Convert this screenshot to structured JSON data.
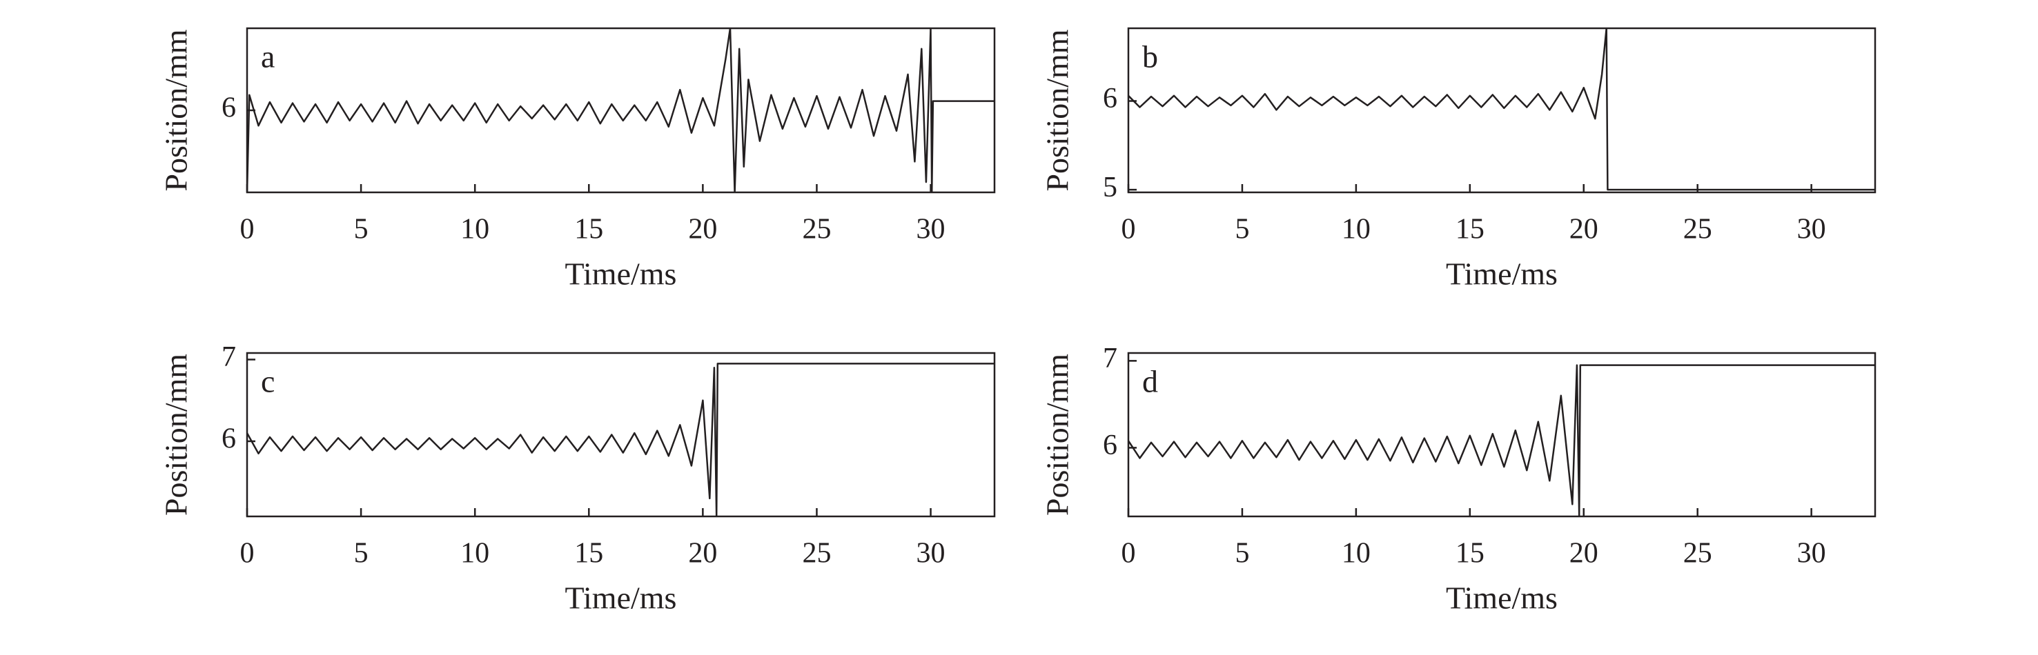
{
  "chart_data": [
    {
      "type": "line",
      "label": "a",
      "x_label": "Time/ms",
      "y_label": "Position/mm",
      "color": "#231f20",
      "xlim": [
        0,
        32.8
      ],
      "xticks": [
        0,
        5,
        10,
        15,
        20,
        25,
        30
      ],
      "ylim": [
        5.2,
        6.8
      ],
      "yticks": [
        6
      ],
      "x": [
        0,
        0.1,
        0.5,
        1,
        1.5,
        2,
        2.5,
        3,
        3.5,
        4,
        4.5,
        5,
        5.5,
        6,
        6.5,
        7,
        7.5,
        8,
        8.5,
        9,
        9.5,
        10,
        10.5,
        11,
        11.5,
        12,
        12.5,
        13,
        13.5,
        14,
        14.5,
        15,
        15.5,
        16,
        16.5,
        17,
        17.5,
        18,
        18.5,
        19,
        19.5,
        20,
        20.5,
        21,
        21.2,
        21.4,
        21.6,
        21.8,
        22,
        22.5,
        23,
        23.5,
        24,
        24.5,
        25,
        25.5,
        26,
        26.5,
        27,
        27.5,
        28,
        28.5,
        29,
        29.3,
        29.6,
        29.8,
        30,
        30.05,
        30.1,
        32.8
      ],
      "values": [
        5.2,
        6.15,
        5.85,
        6.08,
        5.88,
        6.07,
        5.89,
        6.06,
        5.88,
        6.08,
        5.9,
        6.06,
        5.89,
        6.07,
        5.88,
        6.09,
        5.87,
        6.06,
        5.9,
        6.05,
        5.9,
        6.07,
        5.88,
        6.06,
        5.9,
        6.04,
        5.92,
        6.05,
        5.91,
        6.06,
        5.9,
        6.08,
        5.87,
        6.06,
        5.9,
        6.05,
        5.9,
        6.08,
        5.84,
        6.2,
        5.78,
        6.12,
        5.85,
        6.5,
        6.8,
        5.2,
        6.6,
        5.45,
        6.3,
        5.7,
        6.15,
        5.82,
        6.12,
        5.84,
        6.14,
        5.82,
        6.13,
        5.83,
        6.2,
        5.75,
        6.14,
        5.8,
        6.35,
        5.5,
        6.6,
        5.3,
        6.8,
        5.2,
        6.09,
        6.09
      ]
    },
    {
      "type": "line",
      "label": "b",
      "x_label": "Time/ms",
      "y_label": "Position/mm",
      "color": "#231f20",
      "xlim": [
        0,
        32.8
      ],
      "xticks": [
        0,
        5,
        10,
        15,
        20,
        25,
        30
      ],
      "ylim": [
        4.97,
        6.82
      ],
      "yticks": [
        5,
        6
      ],
      "x": [
        0,
        0.5,
        1,
        1.5,
        2,
        2.5,
        3,
        3.5,
        4,
        4.5,
        5,
        5.5,
        6,
        6.5,
        7,
        7.5,
        8,
        8.5,
        9,
        9.5,
        10,
        10.5,
        11,
        11.5,
        12,
        12.5,
        13,
        13.5,
        14,
        14.5,
        15,
        15.5,
        16,
        16.5,
        17,
        17.5,
        18,
        18.5,
        19,
        19.5,
        20,
        20.5,
        20.8,
        21,
        21.05,
        32.8
      ],
      "values": [
        6.06,
        5.93,
        6.05,
        5.94,
        6.06,
        5.93,
        6.05,
        5.94,
        6.04,
        5.95,
        6.06,
        5.93,
        6.08,
        5.9,
        6.05,
        5.94,
        6.04,
        5.95,
        6.05,
        5.95,
        6.04,
        5.95,
        6.05,
        5.94,
        6.06,
        5.93,
        6.05,
        5.94,
        6.07,
        5.92,
        6.06,
        5.93,
        6.07,
        5.92,
        6.06,
        5.93,
        6.08,
        5.9,
        6.1,
        5.88,
        6.15,
        5.8,
        6.3,
        6.82,
        5.0,
        5.0
      ]
    },
    {
      "type": "line",
      "label": "c",
      "x_label": "Time/ms",
      "y_label": "Position/mm",
      "color": "#231f20",
      "xlim": [
        0,
        32.8
      ],
      "xticks": [
        0,
        5,
        10,
        15,
        20,
        25,
        30
      ],
      "ylim": [
        5.08,
        7.08
      ],
      "yticks": [
        6,
        7
      ],
      "x": [
        0,
        0.5,
        1,
        1.5,
        2,
        2.5,
        3,
        3.5,
        4,
        4.5,
        5,
        5.5,
        6,
        6.5,
        7,
        7.5,
        8,
        8.5,
        9,
        9.5,
        10,
        10.5,
        11,
        11.5,
        12,
        12.5,
        13,
        13.5,
        14,
        14.5,
        15,
        15.5,
        16,
        16.5,
        17,
        17.5,
        18,
        18.5,
        19,
        19.5,
        20,
        20.3,
        20.5,
        20.6,
        20.65,
        32.8
      ],
      "values": [
        6.1,
        5.85,
        6.05,
        5.88,
        6.06,
        5.89,
        6.05,
        5.88,
        6.04,
        5.9,
        6.05,
        5.89,
        6.04,
        5.9,
        6.03,
        5.9,
        6.04,
        5.9,
        6.03,
        5.91,
        6.04,
        5.9,
        6.03,
        5.91,
        6.08,
        5.86,
        6.05,
        5.88,
        6.06,
        5.88,
        6.06,
        5.87,
        6.08,
        5.86,
        6.1,
        5.84,
        6.13,
        5.82,
        6.2,
        5.7,
        6.5,
        5.3,
        6.9,
        5.08,
        6.95,
        6.95
      ]
    },
    {
      "type": "line",
      "label": "d",
      "x_label": "Time/ms",
      "y_label": "Position/mm",
      "color": "#231f20",
      "xlim": [
        0,
        32.8
      ],
      "xticks": [
        0,
        5,
        10,
        15,
        20,
        25,
        30
      ],
      "ylim": [
        5.21,
        7.09
      ],
      "yticks": [
        6,
        7
      ],
      "x": [
        0,
        0.5,
        1,
        1.5,
        2,
        2.5,
        3,
        3.5,
        4,
        4.5,
        5,
        5.5,
        6,
        6.5,
        7,
        7.5,
        8,
        8.5,
        9,
        9.5,
        10,
        10.5,
        11,
        11.5,
        12,
        12.5,
        13,
        13.5,
        14,
        14.5,
        15,
        15.5,
        16,
        16.5,
        17,
        17.5,
        18,
        18.5,
        19,
        19.5,
        19.7,
        19.8,
        19.85,
        32.8
      ],
      "values": [
        6.08,
        5.88,
        6.06,
        5.9,
        6.07,
        5.89,
        6.06,
        5.9,
        6.07,
        5.88,
        6.08,
        5.88,
        6.06,
        5.89,
        6.09,
        5.86,
        6.07,
        5.88,
        6.08,
        5.87,
        6.09,
        5.86,
        6.1,
        5.85,
        6.12,
        5.83,
        6.11,
        5.84,
        6.13,
        5.82,
        6.14,
        5.8,
        6.16,
        5.78,
        6.2,
        5.74,
        6.3,
        5.62,
        6.6,
        5.35,
        6.95,
        5.21,
        6.95,
        6.95
      ]
    }
  ]
}
